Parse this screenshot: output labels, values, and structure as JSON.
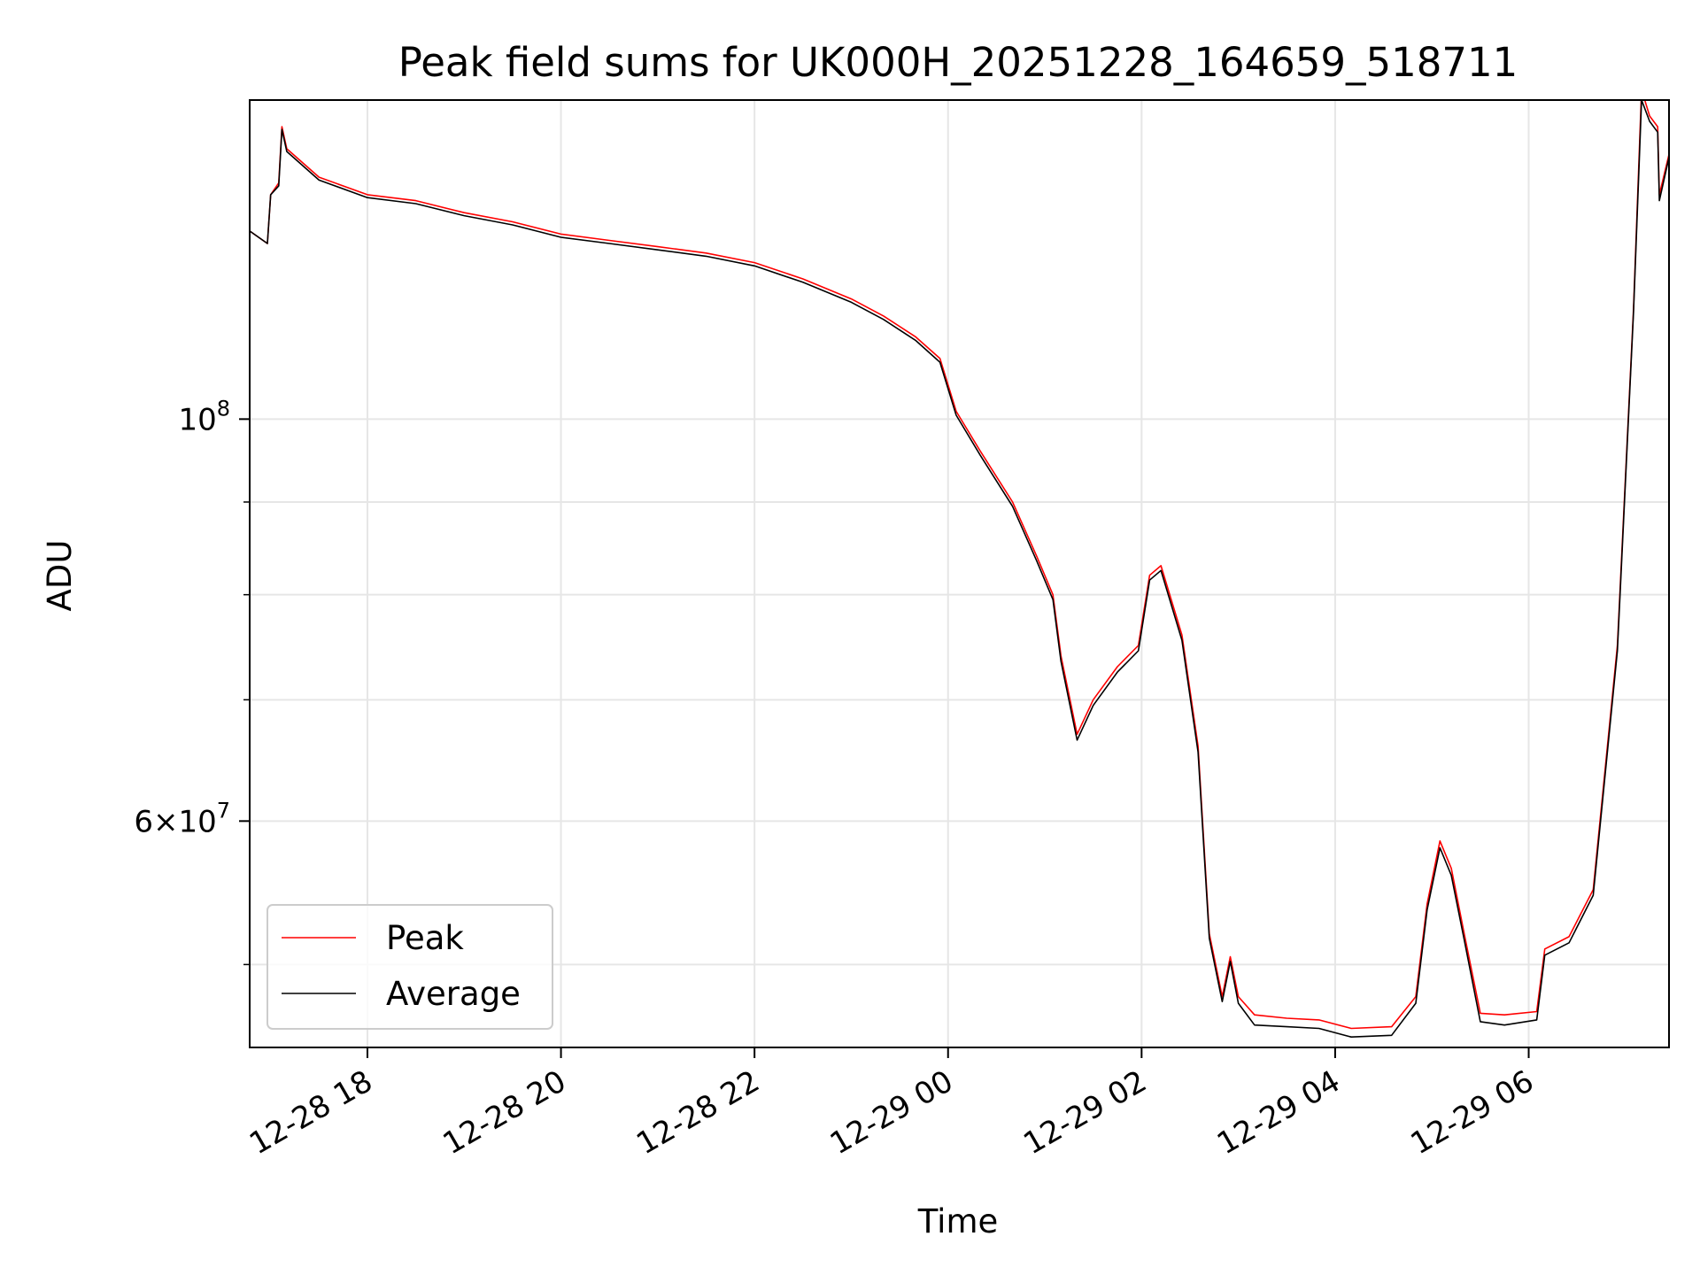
{
  "chart_data": {
    "type": "line",
    "title": "Peak field sums for UK000H_20251228_164659_518711",
    "xlabel": "Time",
    "ylabel": "ADU",
    "y_scale": "log",
    "ylim": [
      45000000,
      150000000
    ],
    "x_range": [
      "2025-12-28 16:47",
      "2025-12-29 07:27"
    ],
    "grid": true,
    "legend_placement": "lower-left",
    "x_ticks": [
      {
        "t": "2025-12-28 18:00",
        "label": "12-28 18"
      },
      {
        "t": "2025-12-28 20:00",
        "label": "12-28 20"
      },
      {
        "t": "2025-12-28 22:00",
        "label": "12-28 22"
      },
      {
        "t": "2025-12-29 00:00",
        "label": "12-29 00"
      },
      {
        "t": "2025-12-29 02:00",
        "label": "12-29 02"
      },
      {
        "t": "2025-12-29 04:00",
        "label": "12-29 04"
      },
      {
        "t": "2025-12-29 06:00",
        "label": "12-29 06"
      }
    ],
    "y_ticks_major": [
      {
        "value": 100000000,
        "base": "10",
        "exp": "8"
      },
      {
        "value": 60000000,
        "base": "6×10",
        "exp": "7"
      }
    ],
    "y_ticks_minor": [
      50000000,
      70000000,
      80000000,
      90000000
    ],
    "series": [
      {
        "name": "Peak",
        "color": "#ff0000",
        "points": [
          [
            "2025-12-28 16:47",
            127000000
          ],
          [
            "2025-12-28 16:58",
            125000000
          ],
          [
            "2025-12-28 17:00",
            133000000
          ],
          [
            "2025-12-28 17:05",
            135000000
          ],
          [
            "2025-12-28 17:07",
            145000000
          ],
          [
            "2025-12-28 17:10",
            141000000
          ],
          [
            "2025-12-28 17:30",
            136000000
          ],
          [
            "2025-12-28 18:00",
            133000000
          ],
          [
            "2025-12-28 18:30",
            132000000
          ],
          [
            "2025-12-28 19:00",
            130000000
          ],
          [
            "2025-12-28 19:30",
            128500000
          ],
          [
            "2025-12-28 20:00",
            126500000
          ],
          [
            "2025-12-28 20:30",
            125500000
          ],
          [
            "2025-12-28 21:00",
            124500000
          ],
          [
            "2025-12-28 21:30",
            123500000
          ],
          [
            "2025-12-28 22:00",
            122000000
          ],
          [
            "2025-12-28 22:30",
            119500000
          ],
          [
            "2025-12-28 23:00",
            116500000
          ],
          [
            "2025-12-28 23:20",
            114000000
          ],
          [
            "2025-12-28 23:40",
            111000000
          ],
          [
            "2025-12-28 23:55",
            108000000
          ],
          [
            "2025-12-29 00:05",
            101000000
          ],
          [
            "2025-12-29 00:20",
            96000000
          ],
          [
            "2025-12-29 00:40",
            90000000
          ],
          [
            "2025-12-29 00:55",
            84000000
          ],
          [
            "2025-12-29 01:05",
            80000000
          ],
          [
            "2025-12-29 01:10",
            74000000
          ],
          [
            "2025-12-29 01:20",
            67000000
          ],
          [
            "2025-12-29 01:30",
            70000000
          ],
          [
            "2025-12-29 01:45",
            73000000
          ],
          [
            "2025-12-29 01:58",
            75000000
          ],
          [
            "2025-12-29 02:05",
            82000000
          ],
          [
            "2025-12-29 02:12",
            83000000
          ],
          [
            "2025-12-29 02:25",
            76000000
          ],
          [
            "2025-12-29 02:35",
            66000000
          ],
          [
            "2025-12-29 02:42",
            52000000
          ],
          [
            "2025-12-29 02:50",
            48000000
          ],
          [
            "2025-12-29 02:55",
            50500000
          ],
          [
            "2025-12-29 03:00",
            48000000
          ],
          [
            "2025-12-29 03:10",
            46900000
          ],
          [
            "2025-12-29 03:30",
            46700000
          ],
          [
            "2025-12-29 03:50",
            46600000
          ],
          [
            "2025-12-29 04:10",
            46100000
          ],
          [
            "2025-12-29 04:35",
            46200000
          ],
          [
            "2025-12-29 04:50",
            48000000
          ],
          [
            "2025-12-29 04:57",
            54000000
          ],
          [
            "2025-12-29 05:05",
            58500000
          ],
          [
            "2025-12-29 05:12",
            56500000
          ],
          [
            "2025-12-29 05:20",
            52000000
          ],
          [
            "2025-12-29 05:30",
            47000000
          ],
          [
            "2025-12-29 05:45",
            46900000
          ],
          [
            "2025-12-29 06:05",
            47100000
          ],
          [
            "2025-12-29 06:10",
            51000000
          ],
          [
            "2025-12-29 06:25",
            51800000
          ],
          [
            "2025-12-29 06:40",
            55000000
          ],
          [
            "2025-12-29 06:55",
            75000000
          ],
          [
            "2025-12-29 07:05",
            115000000
          ],
          [
            "2025-12-29 07:10",
            152000000
          ],
          [
            "2025-12-29 07:15",
            147000000
          ],
          [
            "2025-12-29 07:20",
            145000000
          ],
          [
            "2025-12-29 07:21",
            133000000
          ],
          [
            "2025-12-29 07:27",
            140000000
          ]
        ]
      },
      {
        "name": "Average",
        "color": "#000000",
        "points": [
          [
            "2025-12-28 16:47",
            127000000
          ],
          [
            "2025-12-28 16:58",
            125000000
          ],
          [
            "2025-12-28 17:00",
            133000000
          ],
          [
            "2025-12-28 17:05",
            134500000
          ],
          [
            "2025-12-28 17:07",
            144500000
          ],
          [
            "2025-12-28 17:10",
            140500000
          ],
          [
            "2025-12-28 17:30",
            135500000
          ],
          [
            "2025-12-28 18:00",
            132500000
          ],
          [
            "2025-12-28 18:30",
            131500000
          ],
          [
            "2025-12-28 19:00",
            129500000
          ],
          [
            "2025-12-28 19:30",
            128000000
          ],
          [
            "2025-12-28 20:00",
            126000000
          ],
          [
            "2025-12-28 20:30",
            125000000
          ],
          [
            "2025-12-28 21:00",
            124000000
          ],
          [
            "2025-12-28 21:30",
            123000000
          ],
          [
            "2025-12-28 22:00",
            121500000
          ],
          [
            "2025-12-28 22:30",
            119000000
          ],
          [
            "2025-12-28 23:00",
            116000000
          ],
          [
            "2025-12-28 23:20",
            113500000
          ],
          [
            "2025-12-28 23:40",
            110500000
          ],
          [
            "2025-12-28 23:55",
            107500000
          ],
          [
            "2025-12-29 00:05",
            100500000
          ],
          [
            "2025-12-29 00:20",
            95500000
          ],
          [
            "2025-12-29 00:40",
            89500000
          ],
          [
            "2025-12-29 00:55",
            83500000
          ],
          [
            "2025-12-29 01:05",
            79500000
          ],
          [
            "2025-12-29 01:10",
            73500000
          ],
          [
            "2025-12-29 01:20",
            66500000
          ],
          [
            "2025-12-29 01:30",
            69500000
          ],
          [
            "2025-12-29 01:45",
            72500000
          ],
          [
            "2025-12-29 01:58",
            74500000
          ],
          [
            "2025-12-29 02:05",
            81500000
          ],
          [
            "2025-12-29 02:12",
            82500000
          ],
          [
            "2025-12-29 02:25",
            75500000
          ],
          [
            "2025-12-29 02:35",
            65500000
          ],
          [
            "2025-12-29 02:42",
            51700000
          ],
          [
            "2025-12-29 02:50",
            47700000
          ],
          [
            "2025-12-29 02:55",
            50200000
          ],
          [
            "2025-12-29 03:00",
            47600000
          ],
          [
            "2025-12-29 03:10",
            46300000
          ],
          [
            "2025-12-29 03:30",
            46200000
          ],
          [
            "2025-12-29 03:50",
            46100000
          ],
          [
            "2025-12-29 04:10",
            45600000
          ],
          [
            "2025-12-29 04:35",
            45700000
          ],
          [
            "2025-12-29 04:50",
            47600000
          ],
          [
            "2025-12-29 04:57",
            53600000
          ],
          [
            "2025-12-29 05:05",
            58000000
          ],
          [
            "2025-12-29 05:12",
            56000000
          ],
          [
            "2025-12-29 05:20",
            51600000
          ],
          [
            "2025-12-29 05:30",
            46500000
          ],
          [
            "2025-12-29 05:45",
            46300000
          ],
          [
            "2025-12-29 06:05",
            46600000
          ],
          [
            "2025-12-29 06:10",
            50600000
          ],
          [
            "2025-12-29 06:25",
            51400000
          ],
          [
            "2025-12-29 06:40",
            54600000
          ],
          [
            "2025-12-29 06:55",
            74500000
          ],
          [
            "2025-12-29 07:05",
            114500000
          ],
          [
            "2025-12-29 07:10",
            150000000
          ],
          [
            "2025-12-29 07:15",
            146000000
          ],
          [
            "2025-12-29 07:20",
            144000000
          ],
          [
            "2025-12-29 07:21",
            132000000
          ],
          [
            "2025-12-29 07:27",
            139500000
          ]
        ]
      }
    ]
  }
}
